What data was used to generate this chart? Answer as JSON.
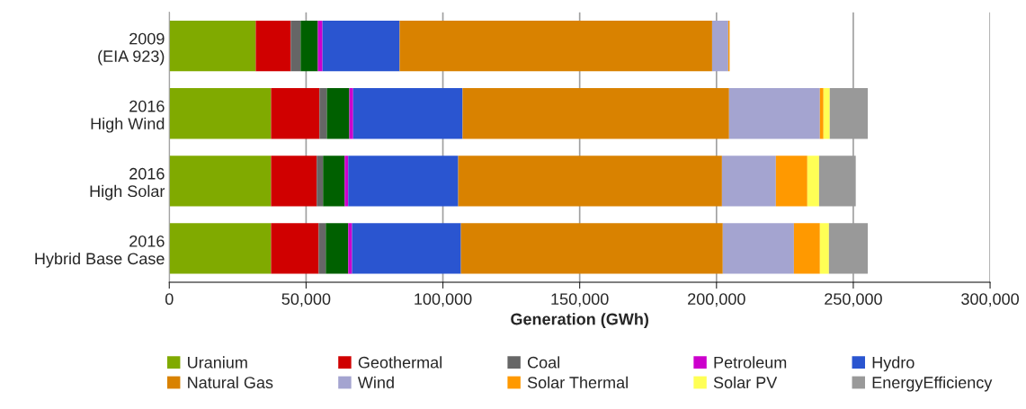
{
  "chart_data": {
    "type": "bar",
    "orientation": "horizontal",
    "stacked": true,
    "xlabel": "Generation (GWh)",
    "categories": [
      "2009\n(EIA 923)",
      "2016\nHigh Wind",
      "2016\nHigh Solar",
      "2016\nHybrid Base Case"
    ],
    "series": [
      {
        "name": "Uranium",
        "color": "#80aa00",
        "values": [
          31600,
          37200,
          37200,
          37200
        ]
      },
      {
        "name": "Geothermal",
        "color": "#d00000",
        "values": [
          12800,
          17700,
          16700,
          17400
        ]
      },
      {
        "name": "Coal",
        "color": "#666666",
        "values": [
          3600,
          2700,
          2300,
          2600
        ]
      },
      {
        "color": "#006000",
        "values": [
          6300,
          8200,
          7900,
          8200
        ]
      },
      {
        "name": "Petroleum",
        "color": "#cc00cc",
        "values": [
          1700,
          1400,
          1300,
          1400
        ]
      },
      {
        "name": "Hydro",
        "color": "#2a55d0",
        "values": [
          28200,
          40000,
          40200,
          39800
        ]
      },
      {
        "name": "Natural Gas",
        "color": "#d98200",
        "values": [
          114200,
          97400,
          96400,
          95700
        ]
      },
      {
        "name": "Wind",
        "color": "#a4a4d0",
        "values": [
          5900,
          33200,
          19700,
          26000
        ]
      },
      {
        "name": "Solar Thermal",
        "color": "#ff9900",
        "values": [
          500,
          1300,
          11500,
          9500
        ]
      },
      {
        "name": "Solar PV",
        "color": "#ffff55",
        "values": [
          0,
          2300,
          4300,
          3300
        ]
      },
      {
        "name": "EnergyEfficiency",
        "color": "#999999",
        "values": [
          0,
          13900,
          13400,
          14200
        ]
      }
    ],
    "xlim": [
      0,
      300000
    ],
    "xticks": [
      {
        "value": 0,
        "label": "0"
      },
      {
        "value": 50000,
        "label": "50,000"
      },
      {
        "value": 100000,
        "label": "100,000"
      },
      {
        "value": 150000,
        "label": "150,000"
      },
      {
        "value": 200000,
        "label": "200,000"
      },
      {
        "value": 250000,
        "label": "250,000"
      },
      {
        "value": 300000,
        "label": "300,000"
      }
    ],
    "grid": "x",
    "legend": "bottom"
  }
}
